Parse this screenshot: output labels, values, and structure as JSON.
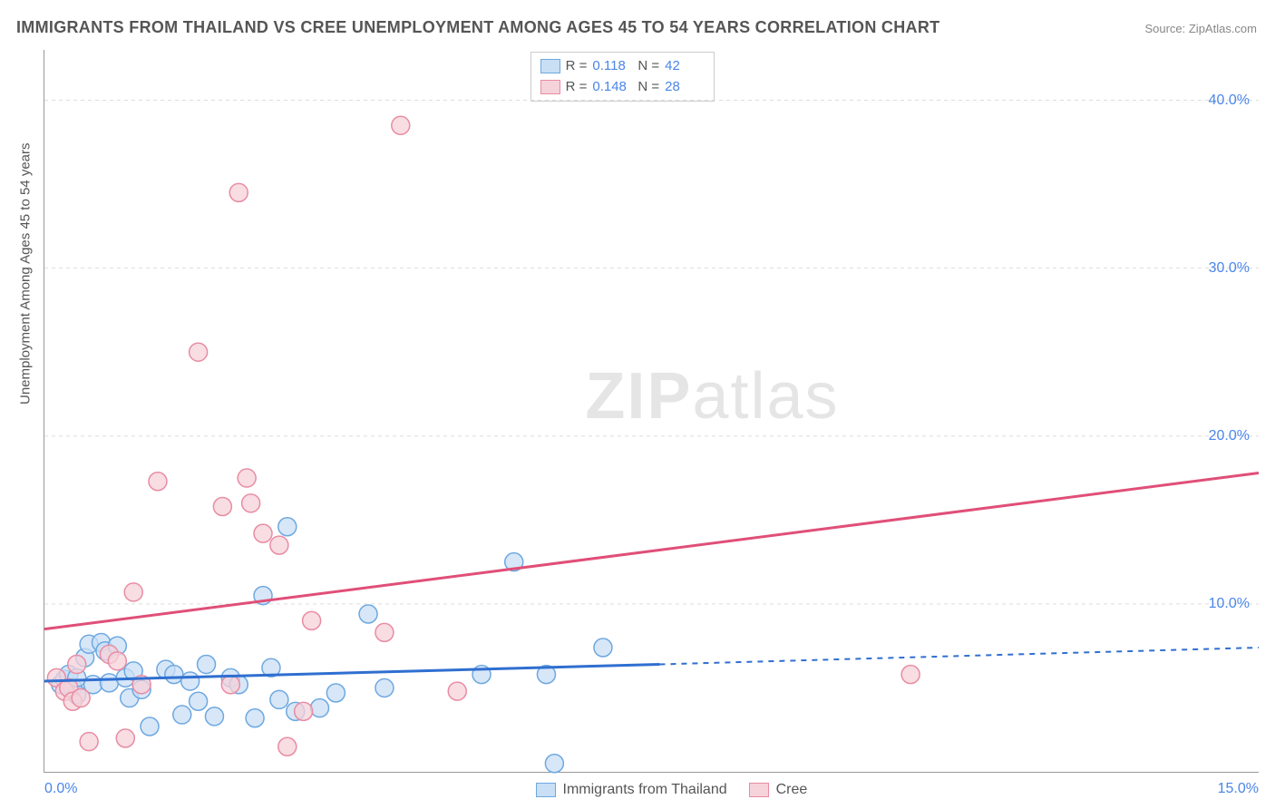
{
  "title": "IMMIGRANTS FROM THAILAND VS CREE UNEMPLOYMENT AMONG AGES 45 TO 54 YEARS CORRELATION CHART",
  "source_prefix": "Source: ",
  "source_name": "ZipAtlas.com",
  "y_axis_label": "Unemployment Among Ages 45 to 54 years",
  "watermark_zip": "ZIP",
  "watermark_atlas": "atlas",
  "chart": {
    "type": "scatter",
    "xlim": [
      0,
      15
    ],
    "ylim": [
      0,
      43
    ],
    "x_ticks": [
      {
        "v": 0,
        "l": "0.0%"
      },
      {
        "v": 15,
        "l": "15.0%"
      }
    ],
    "y_ticks": [
      {
        "v": 10,
        "l": "10.0%"
      },
      {
        "v": 20,
        "l": "20.0%"
      },
      {
        "v": 30,
        "l": "30.0%"
      },
      {
        "v": 40,
        "l": "40.0%"
      }
    ],
    "grid_dash": "4,4",
    "grid_color": "#dddddd",
    "background_color": "#ffffff",
    "marker_radius": 10,
    "marker_stroke_width": 1.5,
    "line_width": 3,
    "series": [
      {
        "id": "thailand",
        "label": "Immigrants from Thailand",
        "fill": "#c9dff5",
        "stroke": "#6ea8e0",
        "line_color": "#2f6fd0",
        "R": "0.118",
        "N": "42",
        "trend": {
          "x1": 0,
          "y1": 5.4,
          "x2": 7.6,
          "y2": 6.4,
          "x3": 15,
          "y3": 7.4
        },
        "points": [
          [
            0.2,
            5.2
          ],
          [
            0.25,
            5.5
          ],
          [
            0.3,
            5.8
          ],
          [
            0.35,
            5.0
          ],
          [
            0.4,
            4.6
          ],
          [
            0.4,
            5.6
          ],
          [
            0.5,
            6.8
          ],
          [
            0.55,
            7.6
          ],
          [
            0.6,
            5.2
          ],
          [
            0.7,
            7.7
          ],
          [
            0.75,
            7.2
          ],
          [
            0.8,
            5.3
          ],
          [
            0.9,
            7.5
          ],
          [
            1.0,
            5.6
          ],
          [
            1.05,
            4.4
          ],
          [
            1.1,
            6.0
          ],
          [
            1.2,
            4.9
          ],
          [
            1.3,
            2.7
          ],
          [
            1.5,
            6.1
          ],
          [
            1.6,
            5.8
          ],
          [
            1.7,
            3.4
          ],
          [
            1.8,
            5.4
          ],
          [
            1.9,
            4.2
          ],
          [
            2.0,
            6.4
          ],
          [
            2.1,
            3.3
          ],
          [
            2.3,
            5.6
          ],
          [
            2.4,
            5.2
          ],
          [
            2.6,
            3.2
          ],
          [
            2.7,
            10.5
          ],
          [
            2.8,
            6.2
          ],
          [
            2.9,
            4.3
          ],
          [
            3.0,
            14.6
          ],
          [
            3.1,
            3.6
          ],
          [
            3.4,
            3.8
          ],
          [
            3.6,
            4.7
          ],
          [
            4.0,
            9.4
          ],
          [
            4.2,
            5.0
          ],
          [
            5.4,
            5.8
          ],
          [
            5.8,
            12.5
          ],
          [
            6.2,
            5.8
          ],
          [
            6.3,
            0.5
          ],
          [
            6.9,
            7.4
          ]
        ]
      },
      {
        "id": "cree",
        "label": "Cree",
        "fill": "#f6d2da",
        "stroke": "#e98ca3",
        "line_color": "#e04f78",
        "R": "0.148",
        "N": "28",
        "trend": {
          "x1": 0,
          "y1": 8.5,
          "x2": 15,
          "y2": 17.8
        },
        "points": [
          [
            0.15,
            5.6
          ],
          [
            0.25,
            4.8
          ],
          [
            0.3,
            5.0
          ],
          [
            0.35,
            4.2
          ],
          [
            0.4,
            6.4
          ],
          [
            0.45,
            4.4
          ],
          [
            0.55,
            1.8
          ],
          [
            0.8,
            7.0
          ],
          [
            0.9,
            6.6
          ],
          [
            1.0,
            2.0
          ],
          [
            1.1,
            10.7
          ],
          [
            1.2,
            5.2
          ],
          [
            1.4,
            17.3
          ],
          [
            1.9,
            25.0
          ],
          [
            2.2,
            15.8
          ],
          [
            2.3,
            5.2
          ],
          [
            2.4,
            34.5
          ],
          [
            2.5,
            17.5
          ],
          [
            2.55,
            16.0
          ],
          [
            2.7,
            14.2
          ],
          [
            2.9,
            13.5
          ],
          [
            3.0,
            1.5
          ],
          [
            3.2,
            3.6
          ],
          [
            3.3,
            9.0
          ],
          [
            4.2,
            8.3
          ],
          [
            4.4,
            38.5
          ],
          [
            5.1,
            4.8
          ],
          [
            10.7,
            5.8
          ]
        ]
      }
    ]
  },
  "legend_top": {
    "R_label": "R =",
    "N_label": "N ="
  }
}
